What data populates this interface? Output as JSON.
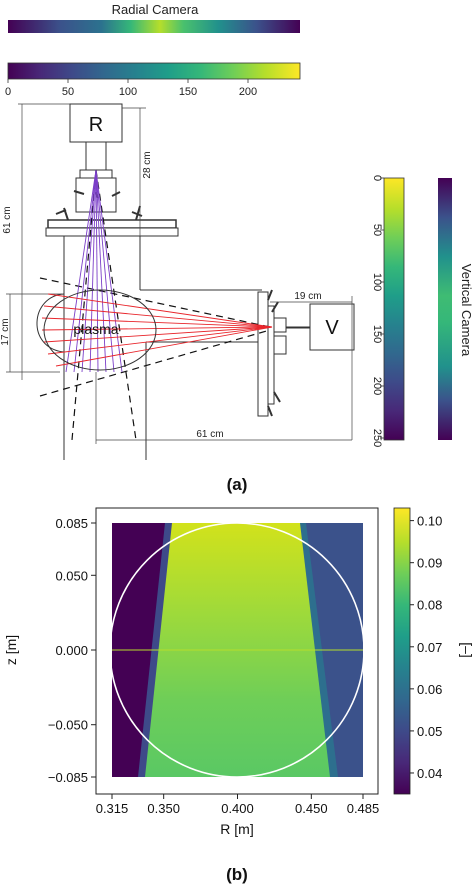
{
  "panel_a": {
    "label": "(a)",
    "radial_camera_title": "Radial Camera",
    "vertical_camera_title": "Vertical Camera",
    "radial_colorbar_ticks": [
      "0",
      "50",
      "100",
      "150",
      "200"
    ],
    "vertical_colorbar_ticks": [
      "0",
      "50",
      "100",
      "150",
      "200",
      "250"
    ],
    "camera_r_label": "R",
    "camera_v_label": "V",
    "plasma_label": "plasma",
    "dimensions": {
      "height_61": "61 cm",
      "distance_28": "28 cm",
      "height_17": "17 cm",
      "distance_19": "19 cm",
      "width_61": "61 cm"
    }
  },
  "panel_b": {
    "label": "(b)",
    "colorbar_ticks": [
      "0.10",
      "0.09",
      "0.08",
      "0.07",
      "0.06",
      "0.05",
      "0.04"
    ],
    "colorbar_unit": "[–]"
  },
  "colors": {
    "viridis": [
      "#440154",
      "#482878",
      "#3e4a89",
      "#31688e",
      "#26828e",
      "#1f9e89",
      "#35b779",
      "#6ece58",
      "#b5de2b",
      "#fde725"
    ],
    "dark_purple": "#440154",
    "ray_red": "#e8262c",
    "ray_purple": "#7b3fc8"
  },
  "chart_data": {
    "type": "heatmap",
    "title": "",
    "xlabel": "R [m]",
    "ylabel": "z [m]",
    "xlim": [
      0.315,
      0.485
    ],
    "ylim": [
      -0.085,
      0.085
    ],
    "x_ticks": [
      0.315,
      0.35,
      0.4,
      0.45,
      0.485
    ],
    "x_tick_labels": [
      "0.315",
      "0.350",
      "0.400",
      "0.450",
      "0.485"
    ],
    "y_ticks": [
      0.085,
      0.05,
      0.0,
      -0.05,
      -0.085
    ],
    "y_tick_labels": [
      "0.085",
      "0.050",
      "0.000",
      "−0.050",
      "−0.085"
    ],
    "colorbar_range": [
      0.035,
      0.103
    ],
    "grid": false,
    "regions": [
      {
        "name": "outer-left",
        "value": 0.036
      },
      {
        "name": "edge-left",
        "value": 0.055
      },
      {
        "name": "central",
        "value": 0.088
      },
      {
        "name": "edge-right",
        "value": 0.048
      },
      {
        "name": "outer-right",
        "value": 0.05
      }
    ],
    "annotation_circle": {
      "center_R": 0.4,
      "center_z": 0.0,
      "radius": 0.085,
      "color": "white"
    }
  }
}
